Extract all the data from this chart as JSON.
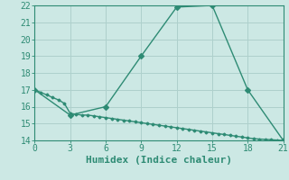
{
  "xlabel": "Humidex (Indice chaleur)",
  "line1_x": [
    0,
    3,
    6,
    9,
    12,
    15,
    18,
    21
  ],
  "line1_y": [
    17,
    15.5,
    16,
    19,
    21.9,
    22,
    17,
    14
  ],
  "line2_x": [
    0,
    0.5,
    1,
    1.5,
    2,
    2.5,
    3,
    3.5,
    4,
    4.5,
    5,
    5.5,
    6,
    6.5,
    7,
    7.5,
    8,
    8.5,
    9,
    9.5,
    10,
    10.5,
    11,
    11.5,
    12,
    12.5,
    13,
    13.5,
    14,
    14.5,
    15,
    15.5,
    16,
    16.5,
    17,
    17.5,
    18,
    18.5,
    19,
    19.5,
    20,
    20.5,
    21
  ],
  "line2_y": [
    17,
    16.85,
    16.7,
    16.55,
    16.4,
    16.2,
    15.6,
    15.55,
    15.5,
    15.5,
    15.45,
    15.4,
    15.35,
    15.3,
    15.25,
    15.2,
    15.15,
    15.1,
    15.05,
    15.0,
    14.95,
    14.9,
    14.85,
    14.8,
    14.75,
    14.7,
    14.65,
    14.6,
    14.55,
    14.5,
    14.45,
    14.4,
    14.35,
    14.3,
    14.25,
    14.2,
    14.15,
    14.1,
    14.08,
    14.06,
    14.04,
    14.02,
    14.0
  ],
  "color": "#2e8b74",
  "bg_color": "#cce8e4",
  "grid_color": "#aed0cc",
  "xlim": [
    0,
    21
  ],
  "ylim": [
    14,
    22
  ],
  "xticks": [
    0,
    3,
    6,
    9,
    12,
    15,
    18,
    21
  ],
  "yticks": [
    14,
    15,
    16,
    17,
    18,
    19,
    20,
    21,
    22
  ],
  "marker": "D",
  "markersize": 3,
  "linewidth": 1.0,
  "font_family": "monospace",
  "xlabel_fontsize": 8,
  "tick_fontsize": 7
}
